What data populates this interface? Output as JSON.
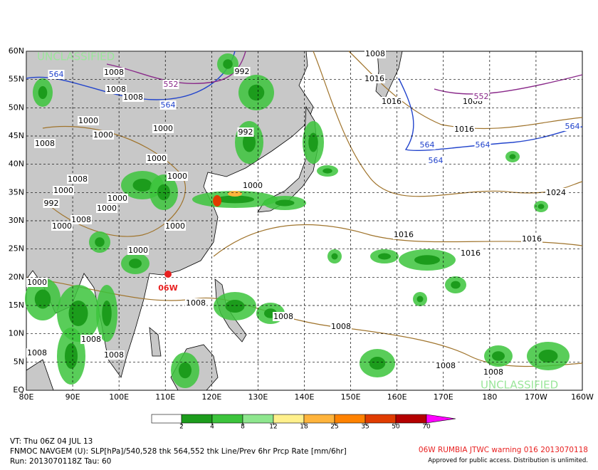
{
  "map": {
    "classification_top": "UNCLASSIFIED",
    "classification_bottom": "UNCLASSIFIED",
    "lat_labels": [
      "60N",
      "55N",
      "50N",
      "45N",
      "40N",
      "35N",
      "30N",
      "25N",
      "20N",
      "15N",
      "10N",
      "5N",
      "EQ"
    ],
    "lon_labels": [
      "80E",
      "90E",
      "100E",
      "110E",
      "120E",
      "130E",
      "140E",
      "150E",
      "160E",
      "170E",
      "180",
      "170W",
      "160W"
    ],
    "storm_label": "06W",
    "contour_labels": [
      "1008",
      "1008",
      "1008",
      "552",
      "564",
      "564",
      "992",
      "1000",
      "1000",
      "1000",
      "1008",
      "1008",
      "1000",
      "1000",
      "1000",
      "992",
      "1000",
      "1000",
      "1008",
      "1000",
      "1000",
      "1000",
      "1000",
      "1008",
      "1008",
      "1008",
      "1008",
      "1008",
      "1008",
      "1008",
      "1008",
      "992",
      "1000",
      "1016",
      "1016",
      "1008",
      "552",
      "1016",
      "564",
      "564",
      "564",
      "564",
      "1024",
      "1016",
      "1016",
      "1016",
      "1008"
    ]
  },
  "colorbar": {
    "ticks": [
      2,
      4,
      8,
      12,
      18,
      25,
      35,
      50,
      70
    ],
    "colors": [
      "#1c9c1c",
      "#3cc43c",
      "#8ee68e",
      "#fff08c",
      "#ffb43c",
      "#ff8200",
      "#e03c00",
      "#b40000",
      "#ff00ff"
    ]
  },
  "footer": {
    "valid_time": "VT: Thu 06Z 04 JUL 13",
    "description": "FNMOC NAVGEM (U): SLP[hPa]/540,528 thk 564,552 thk Line/Prev 6hr Prcp Rate [mm/6hr]",
    "run": "Run: 2013070118Z Tau: 60",
    "warning": "06W RUMBIA JTWC warning 016 2013070118",
    "release": "Approved for public access. Distribution is unlimited."
  }
}
